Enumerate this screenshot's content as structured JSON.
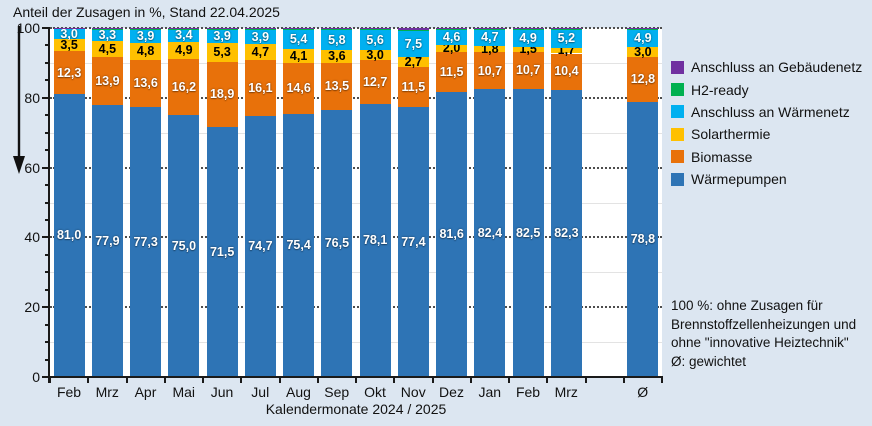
{
  "colors": {
    "background": "#DCE6F1",
    "plot_background": "#FFFFFF",
    "axis": "#1A1A1A",
    "waermepumpen": "#2E74B5",
    "biomasse": "#E8710A",
    "solarthermie": "#FFC000",
    "anschluss_waermenetz": "#00B0F0",
    "h2_ready": "#00B050",
    "anschluss_gebaeudenetz": "#7030A0"
  },
  "chart_data": {
    "type": "bar",
    "stacked": true,
    "title": "Anteil der Zusagen in %, Stand 22.04.2025",
    "xlabel": "Kalendermonate 2024 / 2025",
    "ylabel": "",
    "ylim": [
      0,
      100
    ],
    "yticks": [
      0,
      20,
      40,
      60,
      80,
      100
    ],
    "y_minor_gridlines": [
      10,
      30,
      50,
      70,
      90
    ],
    "y_minor_tick_step": 5,
    "grid": true,
    "legend_position": "right",
    "categories": [
      "Feb",
      "Mrz",
      "Apr",
      "Mai",
      "Jun",
      "Jul",
      "Aug",
      "Sep",
      "Okt",
      "Nov",
      "Dez",
      "Jan",
      "Feb",
      "Mrz",
      "Ø"
    ],
    "gap_before_index": 14,
    "series": [
      {
        "key": "waermepumpen",
        "name": "Wärmepumpen",
        "color": "#2E74B5",
        "label_color": "#FFFFFF",
        "show_labels": true,
        "values": [
          81.0,
          77.9,
          77.3,
          75.0,
          71.5,
          74.7,
          75.4,
          76.5,
          78.1,
          77.4,
          81.6,
          82.4,
          82.5,
          82.3,
          78.8
        ]
      },
      {
        "key": "biomasse",
        "name": "Biomasse",
        "color": "#E8710A",
        "label_color": "#FFFFFF",
        "show_labels": true,
        "values": [
          12.3,
          13.9,
          13.6,
          16.2,
          18.9,
          16.1,
          14.6,
          13.5,
          12.7,
          11.5,
          11.5,
          10.7,
          10.7,
          10.4,
          12.8
        ]
      },
      {
        "key": "solarthermie",
        "name": "Solarthermie",
        "color": "#FFC000",
        "label_color": "#000000",
        "show_labels": true,
        "values": [
          3.5,
          4.5,
          4.8,
          4.9,
          5.3,
          4.7,
          4.1,
          3.6,
          3.0,
          2.7,
          2.0,
          1.8,
          1.5,
          1.7,
          3.0
        ]
      },
      {
        "key": "anschluss-waermenetz",
        "name": "Anschluss an Wärmenetz",
        "color": "#00B0F0",
        "label_color": "#FFFFFF",
        "show_labels": true,
        "values": [
          3.0,
          3.3,
          3.9,
          3.4,
          3.9,
          3.9,
          5.4,
          5.8,
          5.6,
          7.5,
          4.6,
          4.7,
          4.9,
          5.2,
          4.9
        ]
      },
      {
        "key": "h2-ready",
        "name": "H2-ready",
        "color": "#00B050",
        "show_labels": false,
        "estimated": true,
        "values": [
          0.1,
          0.2,
          0.2,
          0.3,
          0.2,
          0.3,
          0.3,
          0.4,
          0.3,
          0.4,
          0.1,
          0.2,
          0.2,
          0.2,
          0.2
        ]
      },
      {
        "key": "anschluss-gebaeudenetz",
        "name": "Anschluss an Gebäudenetz",
        "color": "#7030A0",
        "show_labels": false,
        "estimated": true,
        "values": [
          0.1,
          0.2,
          0.2,
          0.2,
          0.2,
          0.3,
          0.2,
          0.2,
          0.3,
          0.5,
          0.2,
          0.2,
          0.2,
          0.2,
          0.3
        ]
      }
    ]
  },
  "legend": {
    "items": [
      {
        "label": "Anschluss an Gebäudenetz",
        "color": "#7030A0"
      },
      {
        "label": "H2-ready",
        "color": "#00B050"
      },
      {
        "label": "Anschluss an Wärmenetz",
        "color": "#00B0F0"
      },
      {
        "label": "Solarthermie",
        "color": "#FFC000"
      },
      {
        "label": "Biomasse",
        "color": "#E8710A"
      },
      {
        "label": "Wärmepumpen",
        "color": "#2E74B5"
      }
    ]
  },
  "note": {
    "lines": [
      "100 %: ohne Zusagen für",
      "Brennstoffzellenheizungen und",
      "ohne \"innovative Heiztechnik\"",
      "Ø: gewichtet"
    ]
  }
}
